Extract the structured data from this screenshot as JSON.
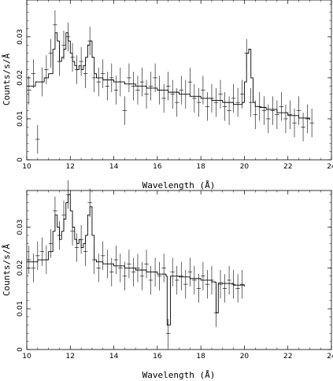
{
  "chart_data": [
    {
      "type": "line",
      "xlabel": "Wavelength (Å)",
      "ylabel": "Counts/s/Å",
      "xlim": [
        10,
        24
      ],
      "ylim": [
        0,
        0.039
      ],
      "xticks": [
        10,
        12,
        14,
        16,
        18,
        20,
        22,
        24
      ],
      "yticks": [
        0,
        0.01,
        0.02,
        0.03
      ],
      "series": [
        {
          "kind": "model",
          "x": [
            10.0,
            10.4,
            10.8,
            11.0,
            11.2,
            11.3,
            11.4,
            11.5,
            11.6,
            11.7,
            11.8,
            11.9,
            12.0,
            12.1,
            12.2,
            12.3,
            12.4,
            12.5,
            12.6,
            12.7,
            12.8,
            12.9,
            13.0,
            13.1,
            13.2,
            13.3,
            13.5,
            14.0,
            14.5,
            15.0,
            15.5,
            16.0,
            16.5,
            17.0,
            17.5,
            18.0,
            18.5,
            19.0,
            19.5,
            19.9,
            20.0,
            20.1,
            20.2,
            20.3,
            20.4,
            20.5,
            20.7,
            21.0,
            21.5,
            22.0,
            22.5,
            23.0
          ],
          "y": [
            0.018,
            0.019,
            0.02,
            0.021,
            0.027,
            0.031,
            0.029,
            0.024,
            0.025,
            0.027,
            0.031,
            0.029,
            0.026,
            0.024,
            0.023,
            0.022,
            0.023,
            0.022,
            0.023,
            0.025,
            0.028,
            0.029,
            0.025,
            0.021,
            0.02,
            0.02,
            0.0195,
            0.019,
            0.0185,
            0.018,
            0.0175,
            0.017,
            0.0165,
            0.016,
            0.0155,
            0.015,
            0.0145,
            0.014,
            0.0135,
            0.014,
            0.019,
            0.026,
            0.027,
            0.02,
            0.014,
            0.013,
            0.0128,
            0.0123,
            0.0115,
            0.0108,
            0.0102,
            0.0097
          ]
        },
        {
          "kind": "data",
          "x": [
            10.1,
            10.3,
            10.5,
            10.7,
            10.9,
            11.1,
            11.3,
            11.5,
            11.7,
            11.9,
            12.1,
            12.3,
            12.5,
            12.7,
            12.9,
            13.1,
            13.3,
            13.5,
            13.7,
            13.9,
            14.1,
            14.3,
            14.5,
            14.7,
            14.9,
            15.1,
            15.3,
            15.5,
            15.7,
            15.9,
            16.1,
            16.3,
            16.5,
            16.7,
            16.9,
            17.1,
            17.3,
            17.5,
            17.7,
            17.9,
            18.1,
            18.3,
            18.5,
            18.7,
            18.9,
            19.1,
            19.3,
            19.5,
            19.7,
            19.9,
            20.1,
            20.3,
            20.5,
            20.7,
            20.9,
            21.1,
            21.3,
            21.5,
            21.7,
            21.9,
            22.1,
            22.3,
            22.5,
            22.7,
            22.9,
            23.1
          ],
          "y": [
            0.017,
            0.021,
            0.005,
            0.019,
            0.022,
            0.026,
            0.033,
            0.024,
            0.028,
            0.03,
            0.025,
            0.022,
            0.024,
            0.021,
            0.029,
            0.02,
            0.019,
            0.021,
            0.018,
            0.02,
            0.017,
            0.019,
            0.012,
            0.02,
            0.018,
            0.017,
            0.019,
            0.016,
            0.018,
            0.02,
            0.017,
            0.015,
            0.018,
            0.016,
            0.014,
            0.017,
            0.016,
            0.019,
            0.015,
            0.014,
            0.017,
            0.013,
            0.015,
            0.014,
            0.016,
            0.013,
            0.012,
            0.015,
            0.014,
            0.016,
            0.026,
            0.014,
            0.011,
            0.013,
            0.012,
            0.01,
            0.012,
            0.011,
            0.013,
            0.01,
            0.011,
            0.009,
            0.012,
            0.008,
            0.01,
            0.009
          ],
          "err": 0.0035
        }
      ]
    },
    {
      "type": "line",
      "xlabel": "Wavelength (Å)",
      "ylabel": "Counts/s/Å",
      "xlim": [
        10,
        24
      ],
      "ylim": [
        0,
        0.039
      ],
      "xticks": [
        10,
        12,
        14,
        16,
        18,
        20,
        22,
        24
      ],
      "yticks": [
        0,
        0.01,
        0.02,
        0.03
      ],
      "series": [
        {
          "kind": "model",
          "x": [
            10.0,
            10.5,
            11.0,
            11.2,
            11.3,
            11.4,
            11.5,
            11.6,
            11.7,
            11.8,
            11.9,
            12.0,
            12.1,
            12.2,
            12.3,
            12.4,
            12.5,
            12.6,
            12.7,
            12.8,
            12.9,
            13.0,
            13.1,
            13.2,
            13.5,
            14.0,
            14.5,
            15.0,
            15.5,
            16.0,
            16.4,
            16.45,
            16.55,
            16.6,
            17.0,
            17.5,
            18.0,
            18.5,
            18.65,
            18.7,
            18.75,
            18.8,
            19.0,
            19.5,
            20.0
          ],
          "y": [
            0.0215,
            0.022,
            0.024,
            0.029,
            0.033,
            0.03,
            0.027,
            0.029,
            0.032,
            0.036,
            0.038,
            0.034,
            0.03,
            0.027,
            0.026,
            0.027,
            0.025,
            0.026,
            0.028,
            0.033,
            0.035,
            0.028,
            0.022,
            0.0215,
            0.021,
            0.0205,
            0.02,
            0.0195,
            0.019,
            0.0185,
            0.018,
            0.006,
            0.006,
            0.018,
            0.0178,
            0.0174,
            0.017,
            0.0166,
            0.0165,
            0.009,
            0.009,
            0.0163,
            0.0162,
            0.0158,
            0.0155
          ]
        },
        {
          "kind": "data",
          "x": [
            10.1,
            10.3,
            10.5,
            10.7,
            10.9,
            11.1,
            11.3,
            11.5,
            11.7,
            11.9,
            12.1,
            12.3,
            12.5,
            12.7,
            12.9,
            13.1,
            13.3,
            13.5,
            13.7,
            13.9,
            14.1,
            14.3,
            14.5,
            14.7,
            14.9,
            15.1,
            15.3,
            15.5,
            15.7,
            15.9,
            16.1,
            16.3,
            16.5,
            16.7,
            16.9,
            17.1,
            17.3,
            17.5,
            17.7,
            17.9,
            18.1,
            18.3,
            18.5,
            18.7,
            18.9,
            19.1,
            19.3,
            19.5,
            19.7,
            19.9
          ],
          "y": [
            0.022,
            0.02,
            0.023,
            0.024,
            0.022,
            0.026,
            0.034,
            0.028,
            0.033,
            0.038,
            0.029,
            0.025,
            0.027,
            0.024,
            0.036,
            0.022,
            0.02,
            0.023,
            0.021,
            0.019,
            0.022,
            0.02,
            0.018,
            0.021,
            0.019,
            0.02,
            0.018,
            0.021,
            0.017,
            0.019,
            0.018,
            0.02,
            0.004,
            0.019,
            0.017,
            0.018,
            0.016,
            0.019,
            0.017,
            0.015,
            0.018,
            0.016,
            0.017,
            0.009,
            0.016,
            0.015,
            0.017,
            0.016,
            0.015,
            0.016
          ],
          "err": 0.0035
        }
      ]
    }
  ]
}
